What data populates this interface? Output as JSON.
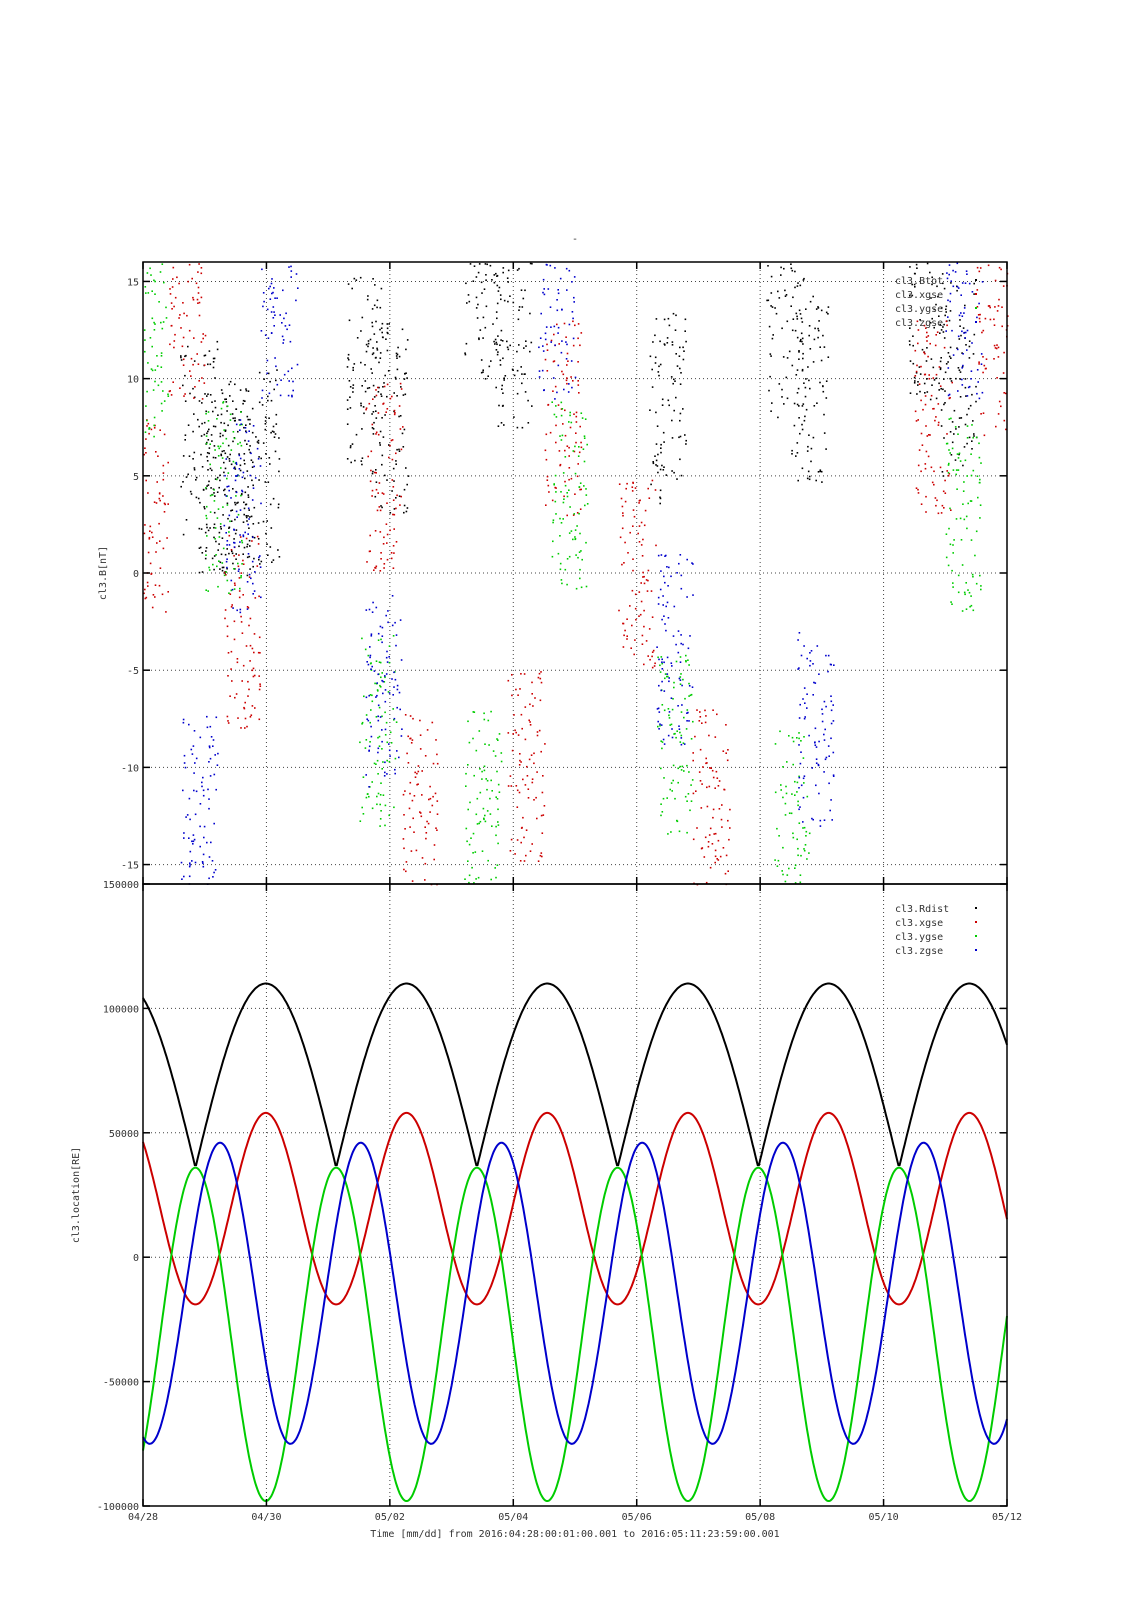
{
  "figure": {
    "top_mark": "-",
    "xlabel": "Time [mm/dd]  from 2016:04:28:00:01:00.001  to  2016:05:11:23:59:00.001",
    "x_ticks": [
      "04/28",
      "04/30",
      "05/02",
      "05/04",
      "05/06",
      "05/08",
      "05/10",
      "05/12"
    ]
  },
  "chart_data": [
    {
      "type": "scatter",
      "title": "",
      "ylabel": "cl3.B[nT]",
      "xlabel": "Time [mm/dd]",
      "x_range_days_from_04_28": [
        0,
        14
      ],
      "ylim": [
        -16,
        16
      ],
      "y_ticks": [
        -15,
        -10,
        -5,
        0,
        5,
        10,
        15
      ],
      "grid": true,
      "legend_position": "top-right",
      "series": [
        {
          "name": "cl3.Btot",
          "color": "#000000",
          "description_points": [
            [
              0.9,
              7.0
            ],
            [
              1.2,
              5.0
            ],
            [
              1.5,
              4.8
            ],
            [
              1.9,
              5.5
            ],
            [
              3.6,
              10.5
            ],
            [
              4.0,
              8.0
            ],
            [
              5.5,
              15.0
            ],
            [
              6.0,
              12.5
            ],
            [
              8.5,
              8.5
            ],
            [
              10.4,
              13.0
            ],
            [
              10.8,
              9.5
            ],
            [
              12.7,
              13.5
            ],
            [
              13.2,
              10.0
            ]
          ]
        },
        {
          "name": "cl3.xgse",
          "color": "#cc0000",
          "description_points": [
            [
              0.1,
              3.0
            ],
            [
              0.7,
              14.0
            ],
            [
              1.6,
              -3.0
            ],
            [
              3.9,
              5.0
            ],
            [
              4.5,
              -12.0
            ],
            [
              6.8,
              8.0
            ],
            [
              6.2,
              -10.0
            ],
            [
              8.0,
              0.0
            ],
            [
              9.2,
              -12.0
            ],
            [
              12.8,
              8.0
            ],
            [
              13.8,
              12.0
            ]
          ]
        },
        {
          "name": "cl3.ygse",
          "color": "#00cc00",
          "description_points": [
            [
              0.1,
              12.0
            ],
            [
              1.3,
              4.0
            ],
            [
              3.8,
              -8.0
            ],
            [
              5.5,
              -12.0
            ],
            [
              6.9,
              4.0
            ],
            [
              8.6,
              -9.0
            ],
            [
              10.5,
              -13.0
            ],
            [
              13.3,
              3.0
            ]
          ]
        },
        {
          "name": "cl3.zgse",
          "color": "#0000cc",
          "description_points": [
            [
              0.9,
              -12.0
            ],
            [
              1.6,
              3.0
            ],
            [
              2.2,
              14.0
            ],
            [
              3.9,
              -6.0
            ],
            [
              6.7,
              14.0
            ],
            [
              8.6,
              -4.0
            ],
            [
              10.9,
              -8.0
            ],
            [
              13.3,
              14.0
            ]
          ]
        }
      ]
    },
    {
      "type": "line",
      "title": "",
      "ylabel": "cl3.location[RE]",
      "xlabel": "Time [mm/dd]",
      "x_range_days_from_04_28": [
        0,
        14
      ],
      "ylim": [
        -100000,
        150000
      ],
      "y_ticks": [
        -100000,
        -50000,
        0,
        50000,
        100000,
        150000
      ],
      "grid": true,
      "legend_position": "top-right",
      "series": [
        {
          "name": "cl3.Rdist",
          "color": "#000000",
          "min": 36000,
          "max": 110000,
          "orbit_period_days": 2.28
        },
        {
          "name": "cl3.xgse",
          "color": "#cc0000",
          "min": -19000,
          "max": 58000,
          "orbit_period_days": 2.28
        },
        {
          "name": "cl3.ygse",
          "color": "#00cc00",
          "min": -98000,
          "max": 36000,
          "orbit_period_days": 2.28
        },
        {
          "name": "cl3.zgse",
          "color": "#0000cc",
          "min": -75000,
          "max": 46000,
          "orbit_period_days": 2.28
        }
      ]
    }
  ]
}
